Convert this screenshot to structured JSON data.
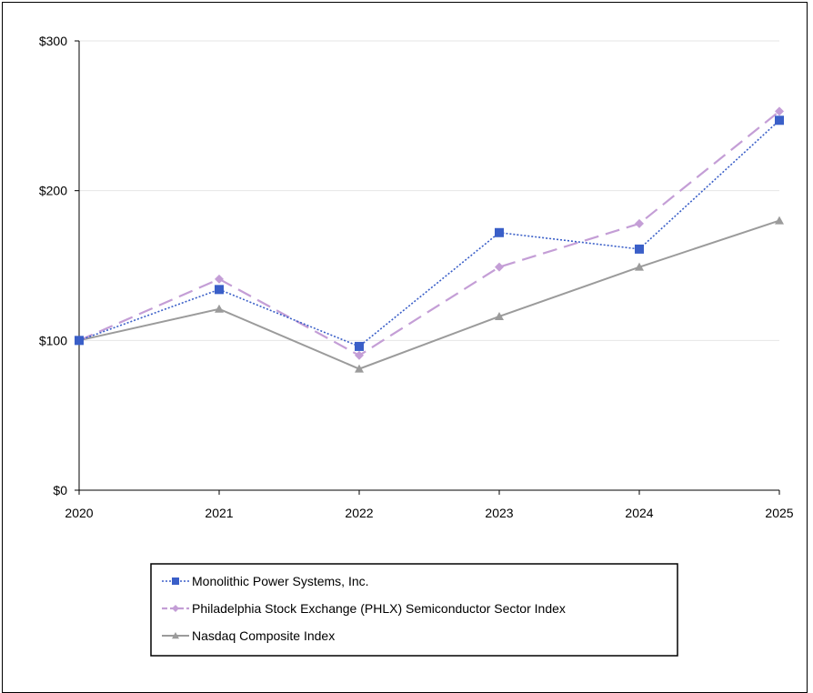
{
  "chart_data": {
    "type": "line",
    "x": [
      "2020",
      "2021",
      "2022",
      "2023",
      "2024",
      "2025"
    ],
    "y_ticks": [
      "$0",
      "$100",
      "$200",
      "$300"
    ],
    "ylim": [
      0,
      300
    ],
    "grid": true,
    "legend_position": "bottom",
    "series": [
      {
        "name": "Monolithic Power Systems, Inc.",
        "values": [
          100,
          134,
          96,
          172,
          161,
          247
        ],
        "color": "#3a5fc8",
        "marker": "square",
        "line_style": "dotted"
      },
      {
        "name": "Philadelphia Stock Exchange (PHLX) Semiconductor Sector Index",
        "values": [
          100,
          141,
          90,
          149,
          178,
          253
        ],
        "color": "#c49ed6",
        "marker": "diamond",
        "line_style": "dashed"
      },
      {
        "name": "Nasdaq Composite Index",
        "values": [
          100,
          121,
          81,
          116,
          149,
          180
        ],
        "color": "#9b9b9b",
        "marker": "triangle",
        "line_style": "solid"
      }
    ]
  }
}
